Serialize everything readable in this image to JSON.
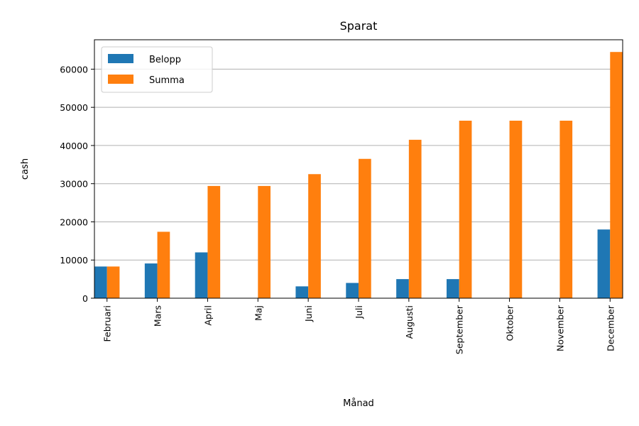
{
  "chart_data": {
    "type": "bar",
    "title": "Sparat",
    "xlabel": "Månad",
    "ylabel": "cash",
    "categories": [
      "Februari",
      "Mars",
      "April",
      "Maj",
      "Juni",
      "Juli",
      "Augusti",
      "September",
      "Oktober",
      "November",
      "December"
    ],
    "series": [
      {
        "name": "Belopp",
        "color": "#1f77b4",
        "values": [
          8300,
          9100,
          12000,
          0,
          3100,
          4000,
          5000,
          5000,
          0,
          0,
          18000
        ]
      },
      {
        "name": "Summa",
        "color": "#ff7f0e",
        "values": [
          8300,
          17400,
          29400,
          29400,
          32500,
          36500,
          41500,
          46500,
          46500,
          46500,
          64500
        ]
      }
    ],
    "ylim": [
      0,
      67700
    ],
    "yticks": [
      0,
      10000,
      20000,
      30000,
      40000,
      50000,
      60000
    ],
    "grid": "y",
    "legend_position": "top-left"
  }
}
